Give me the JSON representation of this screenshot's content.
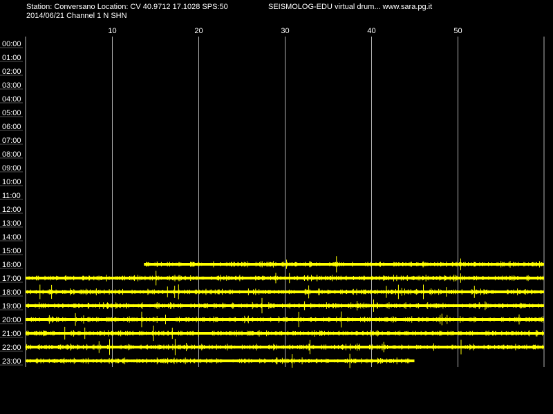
{
  "header": {
    "station_line": "Station: Conversano Location: CV 40.9712 17.1028 SPS:50",
    "date_channel_line": "2014/06/21  Channel 1 N SHN",
    "app_title": "SEISMOLOG-EDU virtual drum... www.sara.pg.it"
  },
  "minute_axis": {
    "labels": [
      "10",
      "20",
      "30",
      "40",
      "50"
    ],
    "max_minutes": 60
  },
  "hour_labels": [
    "00:00",
    "01:00",
    "02:00",
    "03:00",
    "04:00",
    "05:00",
    "06:00",
    "07:00",
    "08:00",
    "09:00",
    "10:00",
    "11:00",
    "12:00",
    "13:00",
    "14:00",
    "15:00",
    "16:00",
    "17:00",
    "18:00",
    "19:00",
    "20:00",
    "21:00",
    "22:00",
    "23:00"
  ],
  "traces": [
    {
      "hour": "16:00",
      "start_minute": 13.7,
      "end_minute": 60
    },
    {
      "hour": "17:00",
      "start_minute": 0,
      "end_minute": 60
    },
    {
      "hour": "18:00",
      "start_minute": 0,
      "end_minute": 60
    },
    {
      "hour": "19:00",
      "start_minute": 0,
      "end_minute": 60
    },
    {
      "hour": "20:00",
      "start_minute": 0,
      "end_minute": 60
    },
    {
      "hour": "21:00",
      "start_minute": 0,
      "end_minute": 60
    },
    {
      "hour": "22:00",
      "start_minute": 0,
      "end_minute": 60
    },
    {
      "hour": "23:00",
      "start_minute": 0,
      "end_minute": 45
    }
  ],
  "colors": {
    "background": "#000000",
    "trace": "#ffff00",
    "grid": "#b4b4b4",
    "text": "#ffffff"
  }
}
